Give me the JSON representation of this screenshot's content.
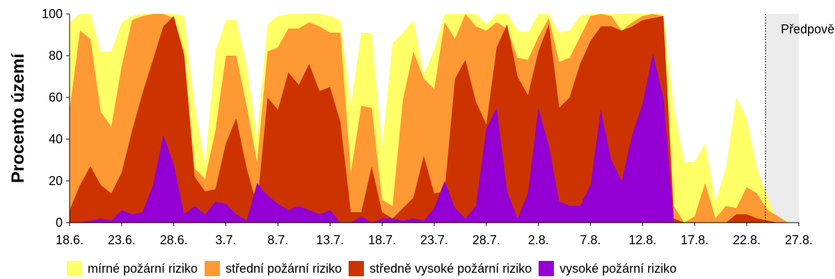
{
  "chart_data": {
    "type": "area",
    "ylabel": "Procento území",
    "ylim": [
      0,
      100
    ],
    "yticks": [
      0,
      20,
      40,
      60,
      80,
      100
    ],
    "x_tick_labels": [
      "18.6.",
      "23.6.",
      "28.6.",
      "3.7.",
      "8.7.",
      "13.7.",
      "18.7.",
      "23.7.",
      "28.7.",
      "2.8.",
      "7.8.",
      "12.8.",
      "17.8.",
      "22.8.",
      "27.8."
    ],
    "forecast_label": "Předpověď",
    "forecast_from_day": 66.8,
    "x_range_days": [
      0,
      70
    ],
    "x_unit": "days since 18.6.",
    "series": [
      {
        "name": "vysoké požární riziko",
        "color": "#9400d3",
        "points": [
          [
            0,
            0
          ],
          [
            1,
            0
          ],
          [
            2,
            1
          ],
          [
            3,
            2
          ],
          [
            4,
            1
          ],
          [
            5,
            6
          ],
          [
            6,
            4
          ],
          [
            7,
            5
          ],
          [
            8,
            18
          ],
          [
            9,
            42
          ],
          [
            10,
            28
          ],
          [
            11,
            4
          ],
          [
            12,
            8
          ],
          [
            13,
            4
          ],
          [
            14,
            10
          ],
          [
            15,
            9
          ],
          [
            16,
            4
          ],
          [
            17,
            1
          ],
          [
            18,
            19
          ],
          [
            19,
            13
          ],
          [
            20,
            9
          ],
          [
            21,
            6
          ],
          [
            22,
            8
          ],
          [
            23,
            6
          ],
          [
            24,
            4
          ],
          [
            25,
            6
          ],
          [
            26,
            0
          ],
          [
            27,
            0
          ],
          [
            28,
            3
          ],
          [
            29,
            0
          ],
          [
            30,
            2
          ],
          [
            31,
            2
          ],
          [
            32,
            1
          ],
          [
            33,
            2
          ],
          [
            34,
            1
          ],
          [
            35,
            7
          ],
          [
            36,
            20
          ],
          [
            37,
            7
          ],
          [
            38,
            2
          ],
          [
            39,
            8
          ],
          [
            40,
            45
          ],
          [
            41,
            55
          ],
          [
            42,
            15
          ],
          [
            43,
            2
          ],
          [
            44,
            14
          ],
          [
            45,
            55
          ],
          [
            46,
            37
          ],
          [
            47,
            10
          ],
          [
            48,
            8
          ],
          [
            49,
            8
          ],
          [
            50,
            18
          ],
          [
            51,
            54
          ],
          [
            52,
            30
          ],
          [
            53,
            20
          ],
          [
            54,
            42
          ],
          [
            55,
            57
          ],
          [
            56,
            81
          ],
          [
            57,
            60
          ],
          [
            58,
            0
          ],
          [
            59,
            0
          ],
          [
            60,
            0
          ],
          [
            61,
            0
          ],
          [
            62,
            0
          ],
          [
            63,
            0
          ],
          [
            64,
            0
          ],
          [
            65,
            0
          ],
          [
            66,
            0
          ],
          [
            67,
            0
          ],
          [
            68,
            0
          ],
          [
            69,
            0
          ],
          [
            70,
            0
          ]
        ]
      },
      {
        "name": "středně vysoké požární riziko",
        "color": "#cc3300",
        "points": [
          [
            0,
            6
          ],
          [
            1,
            18
          ],
          [
            2,
            27
          ],
          [
            3,
            18
          ],
          [
            4,
            14
          ],
          [
            5,
            24
          ],
          [
            6,
            44
          ],
          [
            7,
            62
          ],
          [
            8,
            78
          ],
          [
            9,
            94
          ],
          [
            10,
            99
          ],
          [
            11,
            80
          ],
          [
            12,
            22
          ],
          [
            13,
            15
          ],
          [
            14,
            16
          ],
          [
            15,
            38
          ],
          [
            16,
            50
          ],
          [
            17,
            26
          ],
          [
            18,
            8
          ],
          [
            19,
            60
          ],
          [
            20,
            54
          ],
          [
            21,
            72
          ],
          [
            22,
            66
          ],
          [
            23,
            76
          ],
          [
            24,
            63
          ],
          [
            25,
            65
          ],
          [
            26,
            48
          ],
          [
            27,
            5
          ],
          [
            28,
            5
          ],
          [
            29,
            27
          ],
          [
            30,
            5
          ],
          [
            31,
            2
          ],
          [
            32,
            7
          ],
          [
            33,
            12
          ],
          [
            34,
            32
          ],
          [
            35,
            14
          ],
          [
            36,
            15
          ],
          [
            37,
            69
          ],
          [
            38,
            78
          ],
          [
            39,
            58
          ],
          [
            40,
            47
          ],
          [
            41,
            84
          ],
          [
            42,
            95
          ],
          [
            43,
            70
          ],
          [
            44,
            61
          ],
          [
            45,
            82
          ],
          [
            46,
            95
          ],
          [
            47,
            55
          ],
          [
            48,
            60
          ],
          [
            49,
            76
          ],
          [
            50,
            87
          ],
          [
            51,
            94
          ],
          [
            52,
            94
          ],
          [
            53,
            92
          ],
          [
            54,
            94
          ],
          [
            55,
            97
          ],
          [
            56,
            98
          ],
          [
            57,
            99
          ],
          [
            58,
            2
          ],
          [
            59,
            0
          ],
          [
            60,
            0
          ],
          [
            61,
            0
          ],
          [
            62,
            0
          ],
          [
            63,
            0
          ],
          [
            64,
            4
          ],
          [
            65,
            4
          ],
          [
            66,
            2
          ],
          [
            67,
            1
          ],
          [
            68,
            0
          ],
          [
            69,
            0
          ],
          [
            70,
            0
          ]
        ]
      },
      {
        "name": "střední požární riziko",
        "color": "#ff9933",
        "points": [
          [
            0,
            54
          ],
          [
            1,
            92
          ],
          [
            2,
            88
          ],
          [
            3,
            53
          ],
          [
            4,
            46
          ],
          [
            5,
            75
          ],
          [
            6,
            97
          ],
          [
            7,
            99
          ],
          [
            8,
            100
          ],
          [
            9,
            100
          ],
          [
            10,
            98
          ],
          [
            11,
            82
          ],
          [
            12,
            26
          ],
          [
            13,
            21
          ],
          [
            14,
            44
          ],
          [
            15,
            80
          ],
          [
            16,
            80
          ],
          [
            17,
            56
          ],
          [
            18,
            29
          ],
          [
            19,
            82
          ],
          [
            20,
            84
          ],
          [
            21,
            93
          ],
          [
            22,
            93
          ],
          [
            23,
            96
          ],
          [
            24,
            94
          ],
          [
            25,
            91
          ],
          [
            26,
            91
          ],
          [
            27,
            24
          ],
          [
            28,
            56
          ],
          [
            29,
            55
          ],
          [
            30,
            11
          ],
          [
            31,
            8
          ],
          [
            32,
            59
          ],
          [
            33,
            82
          ],
          [
            34,
            69
          ],
          [
            35,
            64
          ],
          [
            36,
            96
          ],
          [
            37,
            88
          ],
          [
            38,
            100
          ],
          [
            39,
            94
          ],
          [
            40,
            92
          ],
          [
            41,
            96
          ],
          [
            42,
            93
          ],
          [
            43,
            79
          ],
          [
            44,
            78
          ],
          [
            45,
            89
          ],
          [
            46,
            98
          ],
          [
            47,
            77
          ],
          [
            48,
            79
          ],
          [
            49,
            89
          ],
          [
            50,
            99
          ],
          [
            51,
            100
          ],
          [
            52,
            99
          ],
          [
            53,
            92
          ],
          [
            54,
            96
          ],
          [
            55,
            99
          ],
          [
            56,
            100
          ],
          [
            57,
            99
          ],
          [
            58,
            8
          ],
          [
            59,
            0
          ],
          [
            60,
            3
          ],
          [
            61,
            19
          ],
          [
            62,
            2
          ],
          [
            63,
            8
          ],
          [
            64,
            7
          ],
          [
            65,
            17
          ],
          [
            66,
            14
          ],
          [
            67,
            6
          ],
          [
            68,
            3
          ],
          [
            69,
            0
          ],
          [
            70,
            0
          ]
        ]
      },
      {
        "name": "mírné požární riziko",
        "color": "#ffff66",
        "points": [
          [
            0,
            96
          ],
          [
            1,
            100
          ],
          [
            2,
            100
          ],
          [
            3,
            82
          ],
          [
            4,
            82
          ],
          [
            5,
            96
          ],
          [
            6,
            99
          ],
          [
            7,
            100
          ],
          [
            8,
            100
          ],
          [
            9,
            100
          ],
          [
            10,
            100
          ],
          [
            11,
            99
          ],
          [
            12,
            56
          ],
          [
            13,
            28
          ],
          [
            14,
            82
          ],
          [
            15,
            97
          ],
          [
            16,
            97
          ],
          [
            17,
            75
          ],
          [
            18,
            41
          ],
          [
            19,
            95
          ],
          [
            20,
            99
          ],
          [
            21,
            100
          ],
          [
            22,
            100
          ],
          [
            23,
            100
          ],
          [
            24,
            100
          ],
          [
            25,
            99
          ],
          [
            26,
            97
          ],
          [
            27,
            56
          ],
          [
            28,
            91
          ],
          [
            29,
            91
          ],
          [
            30,
            36
          ],
          [
            31,
            86
          ],
          [
            32,
            91
          ],
          [
            33,
            97
          ],
          [
            34,
            71
          ],
          [
            35,
            83
          ],
          [
            36,
            100
          ],
          [
            37,
            100
          ],
          [
            38,
            100
          ],
          [
            39,
            100
          ],
          [
            40,
            95
          ],
          [
            41,
            100
          ],
          [
            42,
            100
          ],
          [
            43,
            92
          ],
          [
            44,
            91
          ],
          [
            45,
            100
          ],
          [
            46,
            100
          ],
          [
            47,
            91
          ],
          [
            48,
            92
          ],
          [
            49,
            99
          ],
          [
            50,
            100
          ],
          [
            51,
            100
          ],
          [
            52,
            100
          ],
          [
            53,
            100
          ],
          [
            54,
            100
          ],
          [
            55,
            100
          ],
          [
            56,
            100
          ],
          [
            57,
            100
          ],
          [
            58,
            55
          ],
          [
            59,
            29
          ],
          [
            60,
            29
          ],
          [
            61,
            38
          ],
          [
            62,
            10
          ],
          [
            63,
            26
          ],
          [
            64,
            60
          ],
          [
            65,
            50
          ],
          [
            66,
            26
          ],
          [
            67,
            12
          ],
          [
            68,
            0
          ],
          [
            69,
            0
          ],
          [
            70,
            0
          ]
        ]
      }
    ],
    "legend_placement": "bottom"
  }
}
